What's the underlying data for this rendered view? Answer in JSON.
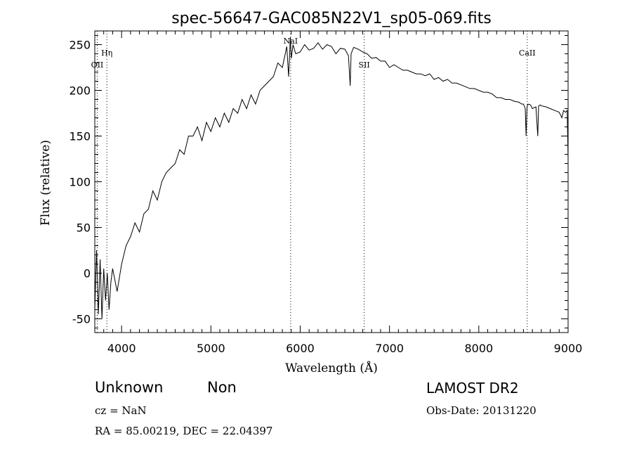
{
  "chart_data": {
    "type": "line",
    "title": "spec-56647-GAC085N22V1_sp05-069.fits",
    "xlabel": "Wavelength (Å)",
    "ylabel": "Flux (relative)",
    "xlim": [
      3700,
      9000
    ],
    "ylim": [
      -65,
      265
    ],
    "x_ticks": [
      4000,
      5000,
      6000,
      7000,
      8000,
      9000
    ],
    "y_ticks": [
      -50,
      0,
      50,
      100,
      150,
      200,
      250
    ],
    "grid": false,
    "series": [
      {
        "x": [
          3700,
          3720,
          3740,
          3760,
          3780,
          3800,
          3820,
          3840,
          3860,
          3880,
          3900,
          3950,
          4000,
          4050,
          4100,
          4150,
          4200,
          4250,
          4300,
          4350,
          4400,
          4450,
          4500,
          4550,
          4600,
          4650,
          4700,
          4750,
          4800,
          4850,
          4900,
          4950,
          5000,
          5050,
          5100,
          5150,
          5200,
          5250,
          5300,
          5350,
          5400,
          5450,
          5500,
          5550,
          5600,
          5650,
          5700,
          5750,
          5800,
          5850,
          5870,
          5890,
          5900,
          5920,
          5950,
          6000,
          6050,
          6100,
          6150,
          6200,
          6250,
          6300,
          6350,
          6400,
          6450,
          6500,
          6540,
          6560,
          6570,
          6590,
          6600,
          6650,
          6700,
          6750,
          6800,
          6850,
          6900,
          6950,
          7000,
          7050,
          7100,
          7150,
          7200,
          7250,
          7300,
          7350,
          7400,
          7450,
          7500,
          7550,
          7600,
          7650,
          7700,
          7750,
          7800,
          7850,
          7900,
          7950,
          8000,
          8050,
          8100,
          8150,
          8200,
          8250,
          8300,
          8350,
          8400,
          8450,
          8480,
          8500,
          8520,
          8530,
          8540,
          8550,
          8580,
          8600,
          8640,
          8660,
          8670,
          8690,
          8700,
          8750,
          8800,
          8850,
          8900,
          8930,
          8950,
          8970,
          8990,
          9000
        ],
        "y": [
          -40,
          25,
          -45,
          15,
          -50,
          5,
          -30,
          0,
          -40,
          -10,
          5,
          -20,
          10,
          30,
          40,
          55,
          45,
          65,
          70,
          90,
          80,
          100,
          110,
          115,
          120,
          135,
          130,
          150,
          150,
          160,
          145,
          165,
          155,
          170,
          160,
          175,
          165,
          180,
          175,
          190,
          180,
          195,
          185,
          200,
          205,
          210,
          215,
          230,
          225,
          248,
          215,
          258,
          235,
          250,
          240,
          242,
          250,
          244,
          246,
          252,
          245,
          250,
          248,
          240,
          246,
          245,
          238,
          205,
          240,
          245,
          247,
          245,
          242,
          240,
          235,
          236,
          232,
          232,
          225,
          228,
          225,
          222,
          222,
          220,
          218,
          218,
          216,
          218,
          212,
          214,
          210,
          212,
          208,
          208,
          206,
          204,
          202,
          202,
          200,
          198,
          198,
          196,
          192,
          192,
          190,
          190,
          188,
          187,
          185,
          185,
          180,
          150,
          182,
          185,
          184,
          180,
          182,
          150,
          183,
          184,
          183,
          182,
          180,
          178,
          176,
          170,
          178,
          176,
          178,
          125
        ]
      }
    ],
    "line_markers": [
      {
        "label": "OII",
        "x": 3727
      },
      {
        "label": "Hη",
        "x": 3835
      },
      {
        "label": "NaI",
        "x": 5893
      },
      {
        "label": "SII",
        "x": 6717
      },
      {
        "label": "CaII",
        "x": 8542
      }
    ]
  },
  "info": {
    "object_class": "Unknown",
    "object_subclass": "Non",
    "survey": "LAMOST DR2",
    "redshift": "cz = NaN",
    "obs_date": "Obs-Date: 20131220",
    "coords": "RA =  85.00219, DEC =  22.04397"
  }
}
